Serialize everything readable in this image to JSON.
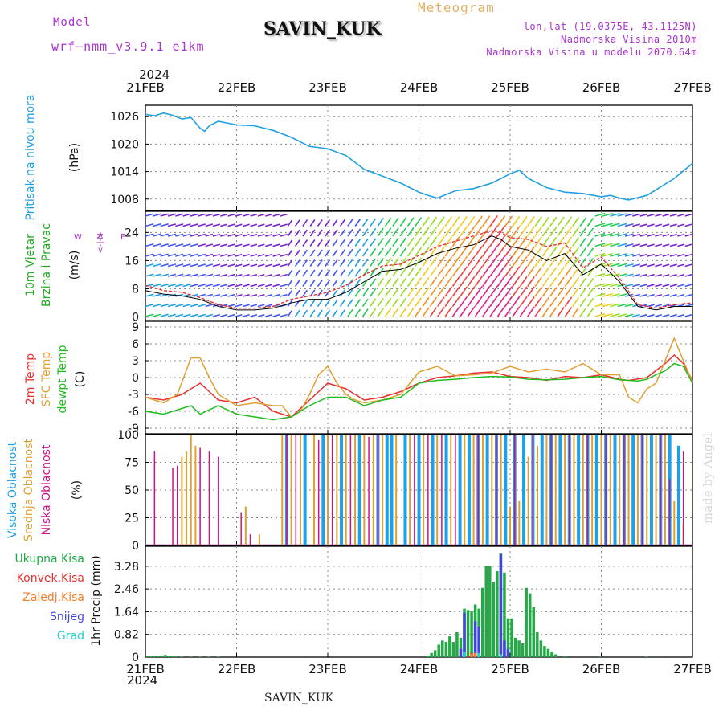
{
  "header": {
    "title": "SAVIN_KUK",
    "meteogram_label": "Meteogram",
    "model_label": "Model",
    "model_name": "wrf−nmm_v3.9.1  e1km",
    "lonlat": "lon,lat (19.0375E, 43.1125N)",
    "elevation": "Nadmorska Visina 2010m",
    "model_elevation": "Nadmorska Visina u modelu 2070.64m",
    "watermark": "made by Angel",
    "footer_title": "SAVIN_KUK",
    "year_top": "2024",
    "year_bottom": "2024"
  },
  "time_axis": {
    "labels": [
      "21FEB",
      "22FEB",
      "23FEB",
      "24FEB",
      "25FEB",
      "26FEB",
      "27FEB"
    ],
    "range_days": [
      0,
      6
    ]
  },
  "colors": {
    "pressure": "#1fa0e0",
    "speed": "#000000",
    "gust": "#e83030",
    "temp_2m": "#e83030",
    "temp_sfc": "#e0a030",
    "dewpoint": "#22bb22",
    "cloud_high": "#1ea0e8",
    "cloud_mid": "#e0a030",
    "cloud_low": "#cc1188",
    "rain_total": "#22aa44",
    "rain_conv": "#e83030",
    "rain_frozen": "#f08030",
    "snow": "#4444dd",
    "graupel": "#22cccc",
    "wind_axis_label": "#aa33cc"
  },
  "chart_data": [
    {
      "type": "line",
      "panel": "pressure",
      "ylabel_lines": [
        "Pritisak na nivou mora"
      ],
      "unit": "(hPa)",
      "yticks": [
        "1008",
        "1014",
        "1020",
        "1026"
      ],
      "ylim": [
        1005.5,
        1028.5
      ],
      "grid": true,
      "series": [
        {
          "x": [
            0,
            0.1,
            0.2,
            0.3,
            0.4,
            0.5,
            0.6,
            0.65,
            0.7,
            0.8,
            1.0,
            1.2,
            1.4,
            1.6,
            1.8,
            2.0,
            2.2,
            2.4,
            2.6,
            2.8,
            3.0,
            3.1,
            3.2,
            3.4,
            3.6,
            3.8,
            4.0,
            4.1,
            4.2,
            4.4,
            4.6,
            4.8,
            5.0,
            5.1,
            5.2,
            5.3,
            5.4,
            5.5,
            5.6,
            5.8,
            6.0
          ],
          "y": [
            1026.5,
            1026.2,
            1026.8,
            1026.3,
            1025.5,
            1025.8,
            1023.5,
            1022.8,
            1024,
            1025,
            1024.2,
            1024,
            1023,
            1021.5,
            1019.5,
            1019,
            1017.5,
            1014.5,
            1013,
            1011.5,
            1009.5,
            1008.8,
            1008.2,
            1009.8,
            1010.3,
            1011.5,
            1013.5,
            1014.3,
            1012.5,
            1010.5,
            1009.5,
            1009.2,
            1008.5,
            1008.8,
            1008.2,
            1007.8,
            1008.3,
            1008.8,
            1010,
            1012.5,
            1015.8
          ]
        }
      ]
    },
    {
      "type": "line",
      "panel": "wind",
      "ylabel_lines": [
        "10m Vjetar",
        "Brzina i Pravac"
      ],
      "unit": "(m/s)",
      "yticks": [
        "0",
        "8",
        "16",
        "24"
      ],
      "ylim": [
        -1,
        30
      ],
      "grid": true,
      "direction_key": [
        "W",
        "E",
        "<-|->",
        "N"
      ],
      "series": [
        {
          "name": "speed",
          "x": [
            0,
            0.2,
            0.4,
            0.6,
            0.8,
            1.0,
            1.2,
            1.4,
            1.6,
            1.8,
            2.0,
            2.2,
            2.4,
            2.6,
            2.8,
            3.0,
            3.2,
            3.4,
            3.6,
            3.8,
            3.9,
            4.0,
            4.2,
            4.4,
            4.6,
            4.8,
            5.0,
            5.2,
            5.4,
            5.6,
            5.8,
            6.0
          ],
          "y": [
            7.5,
            6.5,
            6,
            5,
            3,
            2,
            2,
            2.5,
            4,
            5,
            5,
            7,
            10,
            13,
            13.5,
            15.5,
            18,
            19.5,
            20.5,
            23,
            22,
            20,
            19,
            16,
            18,
            12,
            15,
            10,
            3,
            2,
            3,
            3
          ]
        },
        {
          "name": "gust",
          "x": [
            0,
            0.2,
            0.4,
            0.6,
            0.8,
            1.0,
            1.2,
            1.4,
            1.6,
            1.8,
            2.0,
            2.2,
            2.4,
            2.6,
            2.8,
            3.0,
            3.2,
            3.4,
            3.6,
            3.8,
            3.9,
            4.0,
            4.2,
            4.4,
            4.6,
            4.8,
            5.0,
            5.2,
            5.4,
            5.6,
            5.8,
            6.0
          ],
          "y": [
            9,
            7.5,
            7,
            5.5,
            3.5,
            2.5,
            2.5,
            3,
            5,
            6,
            7,
            9,
            12,
            14.5,
            15,
            17.5,
            20,
            21.5,
            23,
            24.5,
            24,
            22.5,
            22,
            20,
            21,
            14,
            17,
            11,
            3.5,
            2.5,
            3.5,
            4
          ]
        }
      ]
    },
    {
      "type": "line",
      "panel": "temperature",
      "ylabel_lines": [
        "2m Temp",
        "SFC Temp",
        "dewpt Temp"
      ],
      "unit": "(C)",
      "yticks": [
        "-9",
        "-6",
        "-3",
        "0",
        "3",
        "6",
        "9"
      ],
      "ylim": [
        -10,
        10
      ],
      "grid": true,
      "series": [
        {
          "name": "2m Temp",
          "x": [
            0,
            0.2,
            0.4,
            0.6,
            0.7,
            0.8,
            1.0,
            1.2,
            1.4,
            1.6,
            1.8,
            2.0,
            2.2,
            2.4,
            2.6,
            2.8,
            3.0,
            3.2,
            3.4,
            3.6,
            3.8,
            4.0,
            4.2,
            4.4,
            4.6,
            4.8,
            5.0,
            5.2,
            5.3,
            5.5,
            5.7,
            5.8,
            5.9,
            6.0
          ],
          "y": [
            -3.5,
            -4,
            -3,
            -1,
            -2.5,
            -4,
            -4.5,
            -3.5,
            -6,
            -7,
            -4,
            -1,
            -2,
            -4,
            -3.5,
            -2.5,
            -1,
            0,
            0.3,
            0.8,
            1,
            0.2,
            0,
            -0.5,
            0.2,
            0,
            0.5,
            -0.3,
            -0.5,
            0,
            2.5,
            4,
            2.5,
            -0.5
          ]
        },
        {
          "name": "SFC Temp",
          "x": [
            0,
            0.2,
            0.35,
            0.5,
            0.6,
            0.7,
            0.8,
            1.0,
            1.2,
            1.4,
            1.5,
            1.6,
            1.7,
            1.8,
            1.9,
            2.0,
            2.1,
            2.2,
            2.3,
            2.4,
            2.6,
            2.8,
            2.9,
            3.0,
            3.2,
            3.4,
            3.6,
            3.8,
            4.0,
            4.2,
            4.4,
            4.6,
            4.8,
            5.0,
            5.2,
            5.3,
            5.4,
            5.5,
            5.6,
            5.7,
            5.8,
            5.9,
            6.0
          ],
          "y": [
            -3.5,
            -4.5,
            -3,
            3.5,
            3.5,
            0,
            -3,
            -5,
            -4.5,
            -5,
            -5,
            -7,
            -6,
            -3,
            0.5,
            2,
            -1,
            -3,
            -4,
            -4.5,
            -4,
            -3,
            -1,
            1,
            2,
            0.3,
            0.5,
            0.8,
            2,
            1,
            1.5,
            1,
            2.5,
            0.5,
            0.5,
            -3.5,
            -4.5,
            -2,
            -1,
            3,
            7,
            3,
            -0.8
          ]
        },
        {
          "name": "dewpt Temp",
          "x": [
            0,
            0.2,
            0.4,
            0.5,
            0.6,
            0.8,
            1.0,
            1.2,
            1.4,
            1.6,
            1.8,
            2.0,
            2.2,
            2.4,
            2.6,
            2.8,
            3.0,
            3.2,
            3.4,
            3.6,
            3.8,
            4.0,
            4.2,
            4.4,
            4.6,
            4.8,
            5.0,
            5.2,
            5.4,
            5.5,
            5.6,
            5.7,
            5.8,
            5.9,
            6.0
          ],
          "y": [
            -6,
            -6.5,
            -5.5,
            -5,
            -6.5,
            -5,
            -6.5,
            -7,
            -7.5,
            -7,
            -5,
            -3.5,
            -3.5,
            -5,
            -4,
            -3.5,
            -1,
            -0.5,
            -0.3,
            0,
            0.2,
            0.1,
            -0.3,
            -0.4,
            -0.3,
            0,
            0.2,
            -0.4,
            -0.6,
            -0.3,
            0.5,
            1.2,
            2.5,
            2,
            -1
          ]
        }
      ]
    },
    {
      "type": "bar",
      "panel": "clouds",
      "ylabel_lines": [
        "Visoka Oblacnost",
        "Srednja Oblacnost",
        "Niska Oblacnost"
      ],
      "unit": "(%)",
      "yticks": [
        "0",
        "25",
        "50",
        "75",
        "100"
      ],
      "ylim": [
        0,
        100
      ],
      "grid": true,
      "series": [
        {
          "name": "Visoka Oblacnost",
          "x": [
            1.55,
            1.75,
            1.95,
            2.15,
            2.35,
            2.55,
            2.65,
            2.7,
            2.85,
            3.0,
            3.15,
            3.3,
            3.45,
            3.55,
            3.65,
            3.75,
            3.85,
            3.95,
            4.05,
            4.15,
            4.25,
            4.35,
            4.45,
            4.55,
            4.65,
            4.75,
            4.85,
            4.95,
            5.05,
            5.15,
            5.25,
            5.35,
            5.45,
            5.55,
            5.65,
            5.75,
            5.85
          ],
          "y": [
            100,
            100,
            100,
            100,
            100,
            100,
            100,
            100,
            100,
            100,
            100,
            100,
            100,
            100,
            100,
            100,
            100,
            100,
            100,
            100,
            100,
            100,
            100,
            100,
            100,
            100,
            100,
            100,
            100,
            100,
            100,
            100,
            100,
            100,
            100,
            100,
            90
          ]
        },
        {
          "name": "Srednja Oblacnost",
          "x": [
            0.4,
            0.45,
            0.5,
            0.55,
            1.1,
            1.25,
            1.5,
            1.6,
            1.7,
            1.85,
            2.0,
            2.1,
            2.2,
            2.3,
            2.4,
            2.5,
            2.6,
            2.75,
            2.9,
            3.05,
            3.2,
            3.35,
            3.5,
            3.6,
            3.7,
            3.8,
            3.9,
            4.0,
            4.1,
            4.2,
            4.3,
            4.4,
            4.5,
            4.6,
            4.7,
            4.8,
            4.9,
            5.0,
            5.1,
            5.2,
            5.3,
            5.4,
            5.5,
            5.6,
            5.7,
            5.8,
            5.9
          ],
          "y": [
            80,
            85,
            100,
            90,
            35,
            10,
            100,
            100,
            100,
            100,
            100,
            100,
            100,
            100,
            100,
            100,
            100,
            100,
            100,
            100,
            100,
            100,
            100,
            100,
            100,
            100,
            100,
            35,
            40,
            80,
            90,
            100,
            100,
            100,
            100,
            100,
            100,
            100,
            100,
            100,
            100,
            100,
            100,
            100,
            100,
            40,
            20
          ]
        },
        {
          "name": "Niska Oblacnost",
          "x": [
            0.1,
            0.3,
            0.35,
            0.6,
            0.7,
            0.8,
            1.05,
            1.15,
            1.55,
            1.65,
            1.9,
            2.05,
            2.25,
            2.45,
            2.55,
            2.95,
            3.1,
            3.25,
            3.4,
            3.65,
            3.85,
            4.05,
            4.25,
            4.45,
            4.65,
            4.85,
            5.05,
            5.25,
            5.45,
            5.65,
            5.75,
            5.9
          ],
          "y": [
            85,
            70,
            72,
            88,
            85,
            80,
            30,
            10,
            100,
            100,
            95,
            100,
            100,
            98,
            100,
            100,
            100,
            100,
            100,
            100,
            100,
            100,
            100,
            100,
            100,
            100,
            100,
            100,
            100,
            100,
            60,
            85
          ]
        }
      ]
    },
    {
      "type": "bar",
      "panel": "precipitation",
      "legend": [
        "Ukupna Kisa",
        "Konvek.Kisa",
        "Zaledj.Kisa",
        "Snijeg",
        "Grad"
      ],
      "ylabel": "1hr Precip (mm)",
      "yticks": [
        "0",
        "0.82",
        "1.64",
        "2.46",
        "3.28"
      ],
      "ylim": [
        0,
        4.0
      ],
      "grid": true,
      "series": [
        {
          "name": "Ukupna Kisa",
          "x": [
            0.02,
            0.06,
            0.1,
            0.14,
            0.18,
            0.22,
            0.26,
            0.3,
            0.34,
            0.4,
            0.5,
            0.6,
            0.7,
            0.8,
            3.1,
            3.14,
            3.18,
            3.22,
            3.26,
            3.3,
            3.34,
            3.38,
            3.42,
            3.46,
            3.5,
            3.54,
            3.58,
            3.62,
            3.66,
            3.7,
            3.74,
            3.78,
            3.82,
            3.86,
            3.9,
            3.94,
            3.98,
            4.02,
            4.06,
            4.1,
            4.14,
            4.18,
            4.22,
            4.26,
            4.3,
            4.34,
            4.38,
            4.42,
            4.46,
            4.5,
            4.6,
            5.0,
            5.5
          ],
          "y": [
            0.05,
            0.04,
            0.06,
            0.05,
            0.06,
            0.08,
            0.05,
            0.04,
            0.03,
            0.02,
            0.02,
            0.02,
            0.02,
            0.02,
            0.05,
            0.15,
            0.25,
            0.45,
            0.6,
            0.55,
            0.75,
            0.55,
            0.9,
            0.7,
            1.75,
            1.7,
            1.65,
            1.9,
            1.75,
            2.5,
            3.3,
            3.3,
            2.7,
            3.1,
            3.75,
            3.05,
            1.4,
            1.4,
            0.7,
            0.6,
            0.5,
            2.5,
            2.3,
            1.8,
            0.9,
            0.6,
            0.4,
            0.3,
            0.2,
            0.1,
            0.05,
            0.02,
            0.02
          ]
        },
        {
          "name": "Snijeg",
          "x": [
            3.46,
            3.5,
            3.62,
            3.66,
            3.9,
            3.94,
            3.98
          ],
          "y": [
            0.3,
            1.6,
            1.3,
            1.1,
            3.7,
            0.6,
            0.3
          ]
        },
        {
          "name": "Konvek.Kisa",
          "x": [
            3.54,
            3.58,
            3.62
          ],
          "y": [
            0.05,
            0.15,
            0.1
          ]
        },
        {
          "name": "Zaledj.Kisa",
          "x": [
            3.58,
            3.62
          ],
          "y": [
            0.12,
            0.15
          ]
        },
        {
          "name": "Grad",
          "x": [
            3.5,
            3.66,
            3.9
          ],
          "y": [
            0.2,
            0.15,
            0.1
          ]
        }
      ]
    }
  ]
}
